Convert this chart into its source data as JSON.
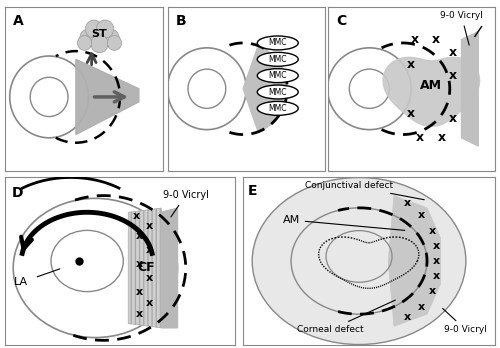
{
  "bg_color": "#ffffff",
  "light_gray": "#c8c8c8",
  "mid_gray": "#a0a0a0",
  "dark_gray": "#606060",
  "panel_labels": [
    "A",
    "B",
    "C",
    "D",
    "E"
  ]
}
